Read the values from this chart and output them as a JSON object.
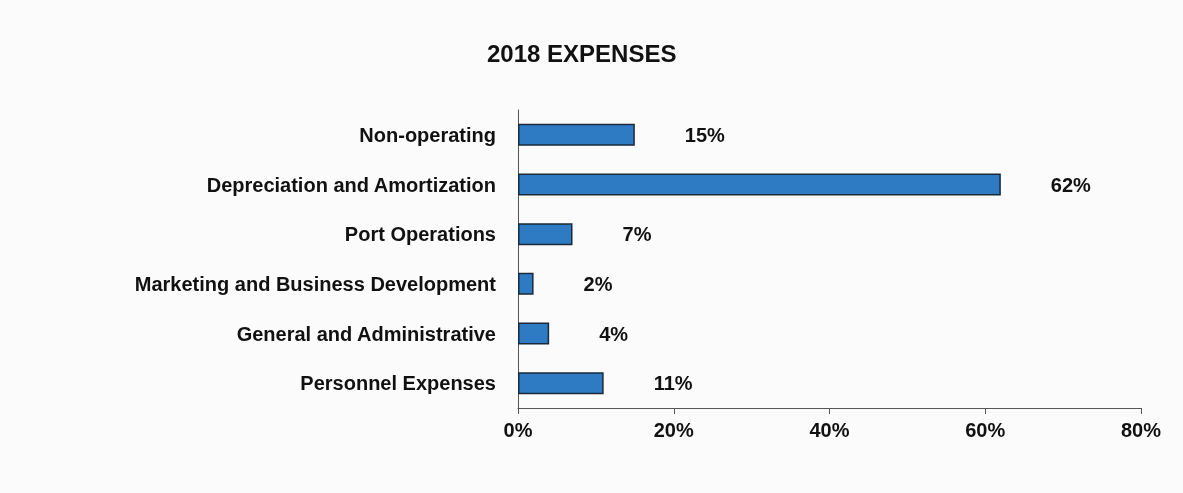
{
  "chart_data": {
    "type": "bar",
    "orientation": "horizontal",
    "title": "2018 EXPENSES",
    "categories": [
      "Non-operating",
      "Depreciation and Amortization",
      "Port Operations",
      "Marketing and Business Development",
      "General and Administrative",
      "Personnel Expenses"
    ],
    "values": [
      15,
      62,
      7,
      2,
      4,
      11
    ],
    "value_labels": [
      "15%",
      "62%",
      "7%",
      "2%",
      "4%",
      "11%"
    ],
    "color": "#2e7bc4",
    "xlim": [
      0,
      80
    ],
    "xticks": [
      {
        "value": 0,
        "label": "0%"
      },
      {
        "value": 20,
        "label": "20%"
      },
      {
        "value": 40,
        "label": "40%"
      },
      {
        "value": 60,
        "label": "60%"
      },
      {
        "value": 80,
        "label": "80%"
      }
    ],
    "grid": false
  }
}
